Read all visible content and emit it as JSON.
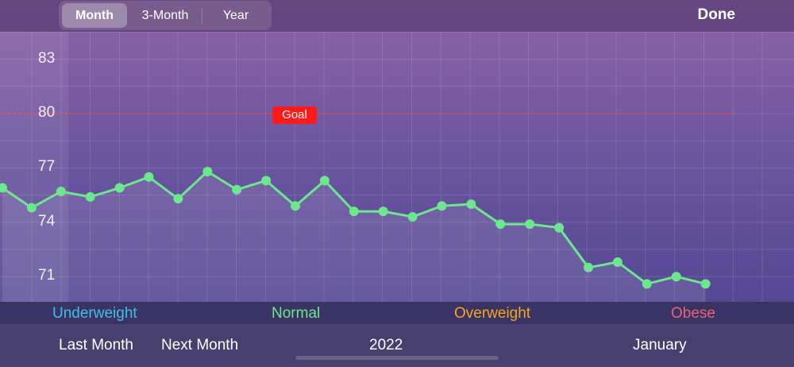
{
  "tabs": [
    {
      "label": "Month",
      "active": true
    },
    {
      "label": "3-Month",
      "active": false
    },
    {
      "label": "Year",
      "active": false
    }
  ],
  "done_label": "Done",
  "goal_label": "Goal",
  "legend": [
    {
      "label": "Underweight",
      "color": "#3fc0e6"
    },
    {
      "label": "Normal",
      "color": "#6ee58f"
    },
    {
      "label": "Overweight",
      "color": "#f5a623"
    },
    {
      "label": "Obese",
      "color": "#e8647a"
    }
  ],
  "bottom": {
    "last_month": "Last Month",
    "next_month": "Next Month",
    "year": "2022",
    "month": "January"
  },
  "colors": {
    "line": "#6ee58f",
    "goal_line": "#ff3a3a"
  },
  "chart_data": {
    "type": "line",
    "yticks": [
      83,
      80,
      77,
      74,
      71
    ],
    "ylim": [
      68,
      84.5
    ],
    "goal": 80,
    "x": [
      0,
      1,
      2,
      3,
      4,
      5,
      6,
      7,
      8,
      9,
      10,
      11,
      12,
      13,
      14,
      15,
      16,
      17,
      18,
      19,
      20,
      21,
      22,
      23,
      24
    ],
    "series": [
      {
        "values": [
          75.9,
          74.8,
          75.7,
          75.4,
          75.9,
          76.5,
          75.3,
          76.8,
          75.8,
          76.3,
          74.9,
          76.3,
          74.6,
          74.6,
          74.3,
          74.9,
          75.0,
          73.9,
          73.9,
          73.7,
          71.5,
          71.8,
          70.6,
          71.0,
          70.6
        ]
      }
    ]
  }
}
